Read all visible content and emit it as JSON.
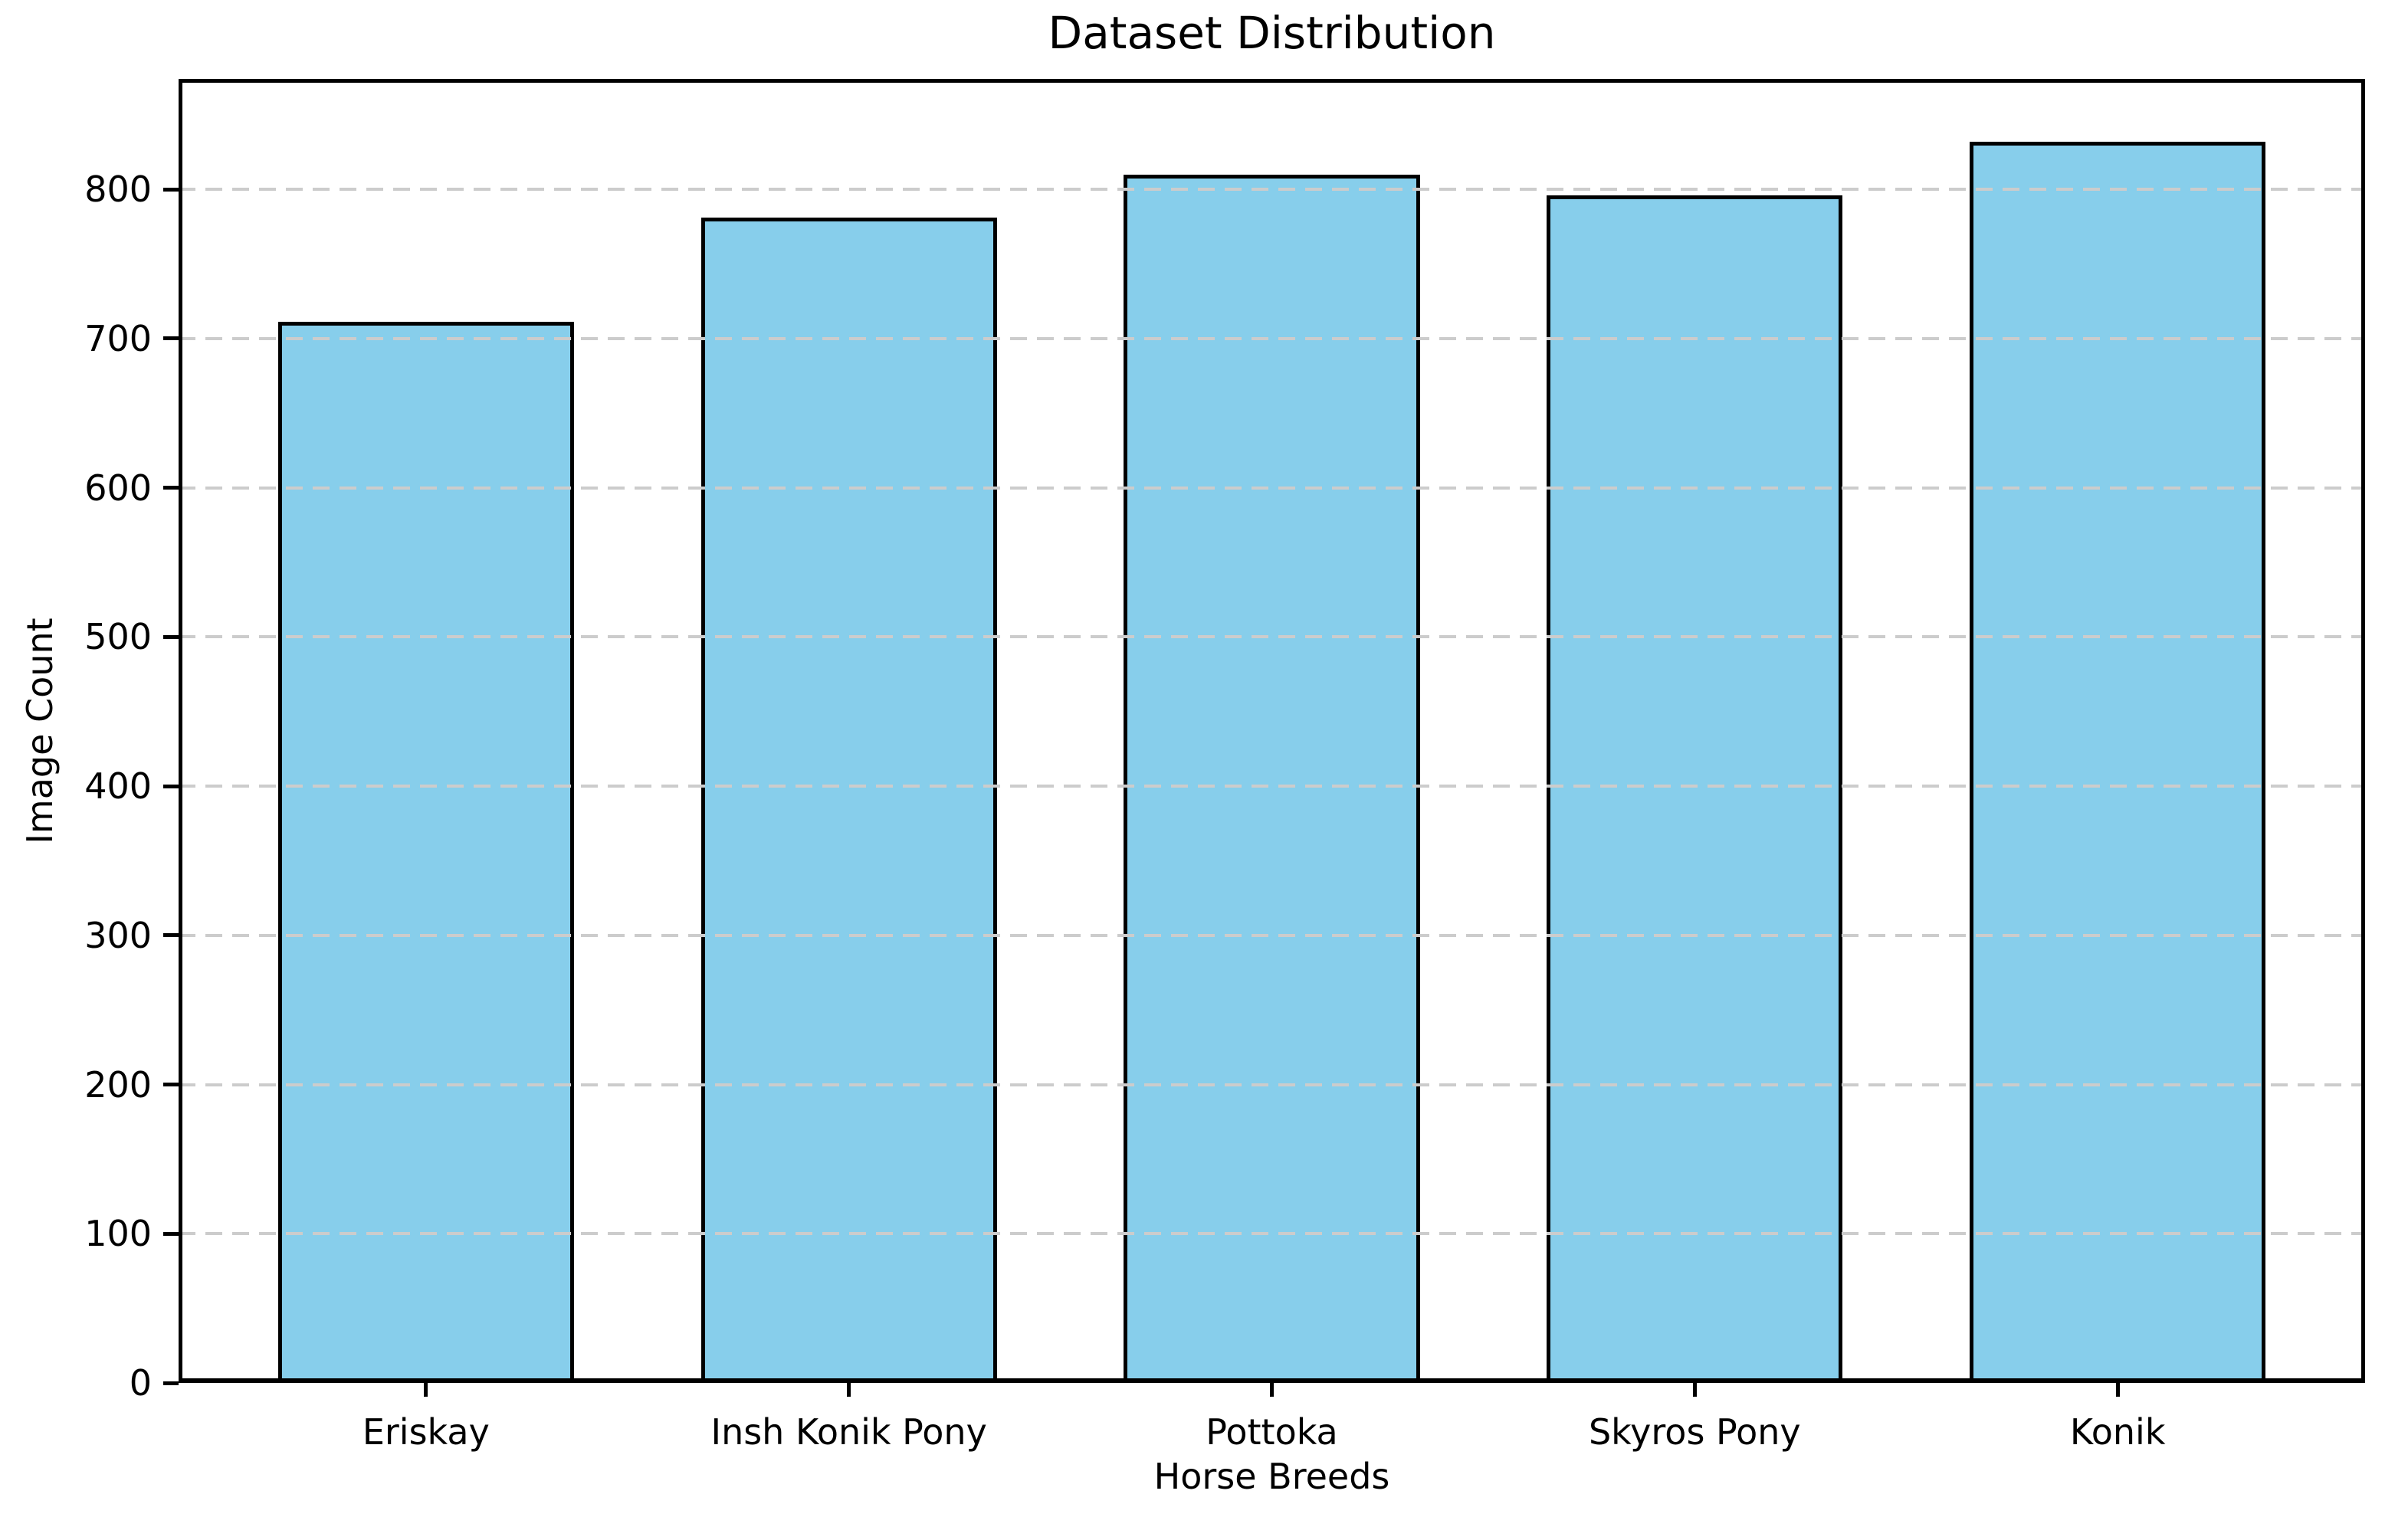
{
  "chart_data": {
    "type": "bar",
    "title": "Dataset Distribution",
    "xlabel": "Horse Breeds",
    "ylabel": "Image Count",
    "categories": [
      "Eriskay",
      "Insh Konik Pony",
      "Pottoka",
      "Skyros Pony",
      "Konik"
    ],
    "values": [
      711,
      781,
      810,
      796,
      832
    ],
    "yticks": [
      0,
      100,
      200,
      300,
      400,
      500,
      600,
      700,
      800
    ],
    "ylim": [
      0,
      874
    ],
    "bar_color": "#87CEEB",
    "bar_edge_color": "#000000",
    "grid": true,
    "grid_color": "#cccccc",
    "grid_style": "dashed",
    "legend_position": "none",
    "plot_background": "#ffffff"
  }
}
